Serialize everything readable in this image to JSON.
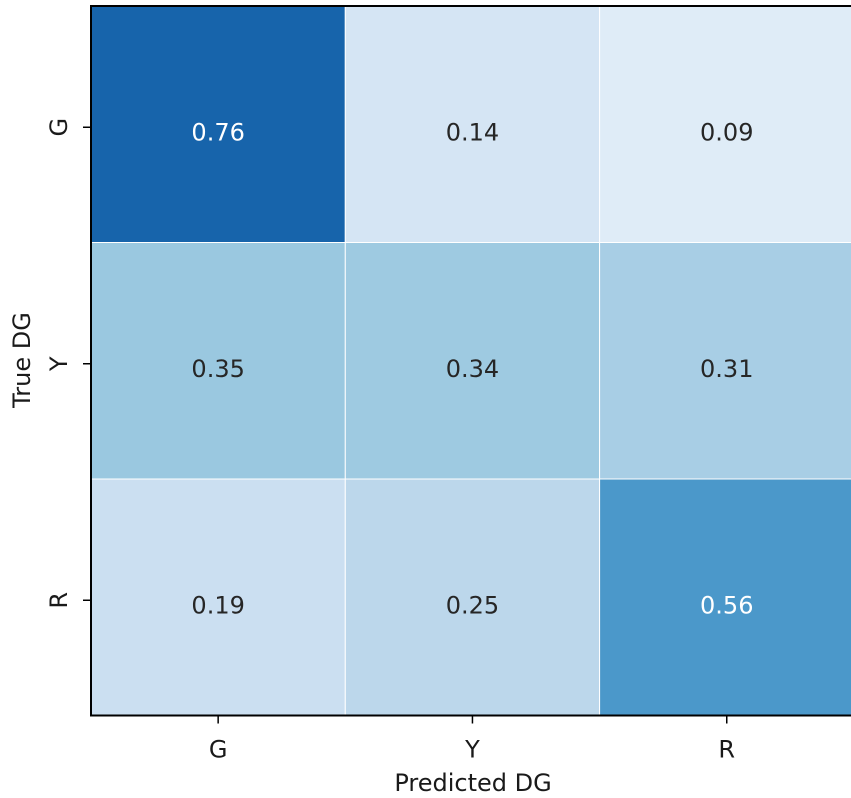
{
  "chart_data": {
    "type": "heatmap",
    "title": "",
    "xlabel": "Predicted DG",
    "ylabel": "True DG",
    "x_categories": [
      "G",
      "Y",
      "R"
    ],
    "y_categories": [
      "G",
      "Y",
      "R"
    ],
    "values": [
      [
        0.76,
        0.14,
        0.09
      ],
      [
        0.35,
        0.34,
        0.31
      ],
      [
        0.19,
        0.25,
        0.56
      ]
    ],
    "value_labels": [
      [
        "0.76",
        "0.14",
        "0.09"
      ],
      [
        "0.35",
        "0.34",
        "0.31"
      ],
      [
        "0.19",
        "0.25",
        "0.56"
      ]
    ],
    "colormap": "Blues",
    "colors": {
      "low": "#f7fbff",
      "high": "#08306b",
      "text_dark": "#262626",
      "text_light": "#ffffff",
      "frame": "#000000"
    }
  }
}
